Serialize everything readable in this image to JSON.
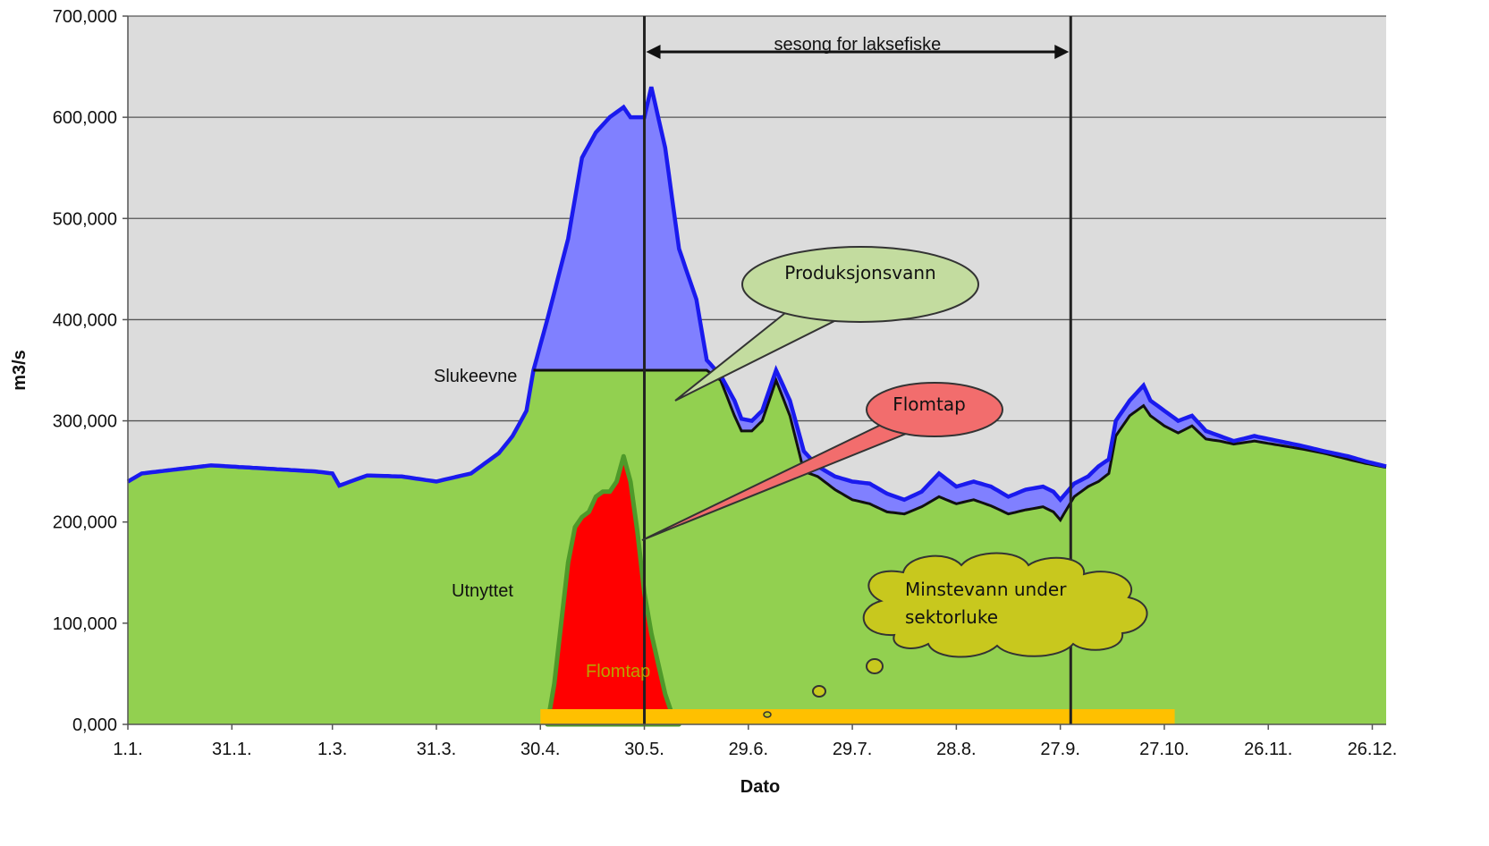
{
  "chart_data": {
    "type": "area",
    "xlabel": "Dato",
    "ylabel": "m3/s",
    "ylim": [
      0,
      700000
    ],
    "y_ticks": [
      "0,000",
      "100,000",
      "200,000",
      "300,000",
      "400,000",
      "500,000",
      "600,000",
      "700,000"
    ],
    "y_tick_values": [
      0,
      100000,
      200000,
      300000,
      400000,
      500000,
      600000,
      700000
    ],
    "x_ticks": [
      "1.1.",
      "31.1.",
      "1.3.",
      "31.3.",
      "30.4.",
      "30.5.",
      "29.6.",
      "29.7.",
      "28.8.",
      "27.9.",
      "27.10.",
      "26.11.",
      "26.12."
    ],
    "x_tick_days": [
      1,
      31,
      60,
      90,
      120,
      150,
      180,
      210,
      240,
      270,
      300,
      330,
      360
    ],
    "xlim_days": [
      1,
      364
    ],
    "grid": "horizontal",
    "legend": "none",
    "colors": {
      "total_line": "#1a1aee",
      "produksjonsvann_fill": "#8080ff",
      "utnyttet_fill": "#92d050",
      "flomtap_fill": "#ff0000",
      "flomtap_line": "#4e9a2a",
      "minstevann_bar": "#ffc000",
      "plot_bg": "#dcdcdc"
    },
    "series": [
      {
        "role": "total",
        "days": [
          1,
          5,
          15,
          25,
          35,
          45,
          55,
          60,
          62,
          70,
          80,
          90,
          100,
          108,
          112,
          116,
          118,
          122,
          128,
          132,
          136,
          140,
          144,
          146,
          150,
          152,
          156,
          160,
          165,
          168,
          172,
          176,
          178,
          181,
          184,
          188,
          192,
          196,
          200,
          205,
          210,
          215,
          220,
          225,
          230,
          235,
          240,
          245,
          250,
          255,
          260,
          265,
          268,
          270,
          274,
          278,
          281,
          284,
          286,
          290,
          294,
          296,
          300,
          304,
          308,
          312,
          316,
          320,
          326,
          333,
          340,
          346,
          353,
          358,
          364
        ],
        "values": [
          240000,
          248000,
          252000,
          256000,
          254000,
          252000,
          250000,
          248000,
          236000,
          246000,
          245000,
          240000,
          248000,
          268000,
          285000,
          310000,
          350000,
          400000,
          480000,
          560000,
          585000,
          600000,
          610000,
          600000,
          600000,
          630000,
          570000,
          470000,
          420000,
          360000,
          345000,
          320000,
          302000,
          300000,
          310000,
          350000,
          320000,
          270000,
          255000,
          245000,
          240000,
          238000,
          228000,
          222000,
          230000,
          248000,
          235000,
          240000,
          235000,
          225000,
          232000,
          235000,
          230000,
          222000,
          238000,
          245000,
          255000,
          262000,
          300000,
          320000,
          335000,
          320000,
          310000,
          300000,
          305000,
          290000,
          285000,
          280000,
          285000,
          280000,
          275000,
          270000,
          265000,
          260000,
          255000
        ]
      },
      {
        "role": "utnyttet",
        "label": "Utnyttet",
        "days": [
          1,
          5,
          15,
          25,
          35,
          45,
          55,
          60,
          62,
          70,
          80,
          90,
          100,
          108,
          112,
          116,
          118,
          122,
          128,
          132,
          136,
          140,
          144,
          146,
          150,
          152,
          156,
          160,
          165,
          168,
          172,
          176,
          178,
          181,
          184,
          188,
          192,
          196,
          200,
          205,
          210,
          215,
          220,
          225,
          230,
          235,
          240,
          245,
          250,
          255,
          260,
          265,
          268,
          270,
          274,
          278,
          281,
          284,
          286,
          290,
          294,
          296,
          300,
          304,
          308,
          312,
          316,
          320,
          326,
          333,
          340,
          346,
          353,
          358,
          364
        ],
        "values": [
          240000,
          248000,
          252000,
          256000,
          254000,
          252000,
          250000,
          248000,
          236000,
          246000,
          245000,
          240000,
          248000,
          268000,
          285000,
          310000,
          350000,
          350000,
          350000,
          350000,
          350000,
          350000,
          350000,
          350000,
          350000,
          350000,
          350000,
          350000,
          350000,
          350000,
          340000,
          305000,
          290000,
          290000,
          300000,
          340000,
          305000,
          250000,
          245000,
          232000,
          222000,
          218000,
          210000,
          208000,
          215000,
          225000,
          218000,
          222000,
          216000,
          208000,
          212000,
          215000,
          210000,
          202000,
          225000,
          235000,
          240000,
          248000,
          285000,
          305000,
          315000,
          305000,
          295000,
          288000,
          295000,
          282000,
          280000,
          277000,
          280000,
          276000,
          272000,
          268000,
          262000,
          258000,
          254000
        ]
      },
      {
        "role": "flomtap",
        "label": "Flomtap",
        "days": [
          122,
          124,
          126,
          128,
          130,
          132,
          134,
          136,
          138,
          140,
          142,
          144,
          146,
          148,
          150,
          152,
          154,
          156,
          158,
          160
        ],
        "values": [
          0,
          40000,
          100000,
          160000,
          195000,
          205000,
          210000,
          225000,
          230000,
          230000,
          240000,
          265000,
          240000,
          190000,
          130000,
          90000,
          60000,
          30000,
          10000,
          0
        ]
      }
    ],
    "slukeevne": 350000,
    "season_days": [
      150,
      273
    ],
    "minstevann_days": [
      120,
      303
    ]
  },
  "labels": {
    "season": "sesong for laksefiske",
    "slukeevne": "Slukeevne",
    "utnyttet": "Utnyttet",
    "flomtap_area": "Flomtap"
  },
  "callouts": {
    "produksjonsvann": "Produksjonsvann",
    "flomtap": "Flomtap",
    "minstevann_line1": "Minstevann under",
    "minstevann_line2": "sektorluke"
  }
}
